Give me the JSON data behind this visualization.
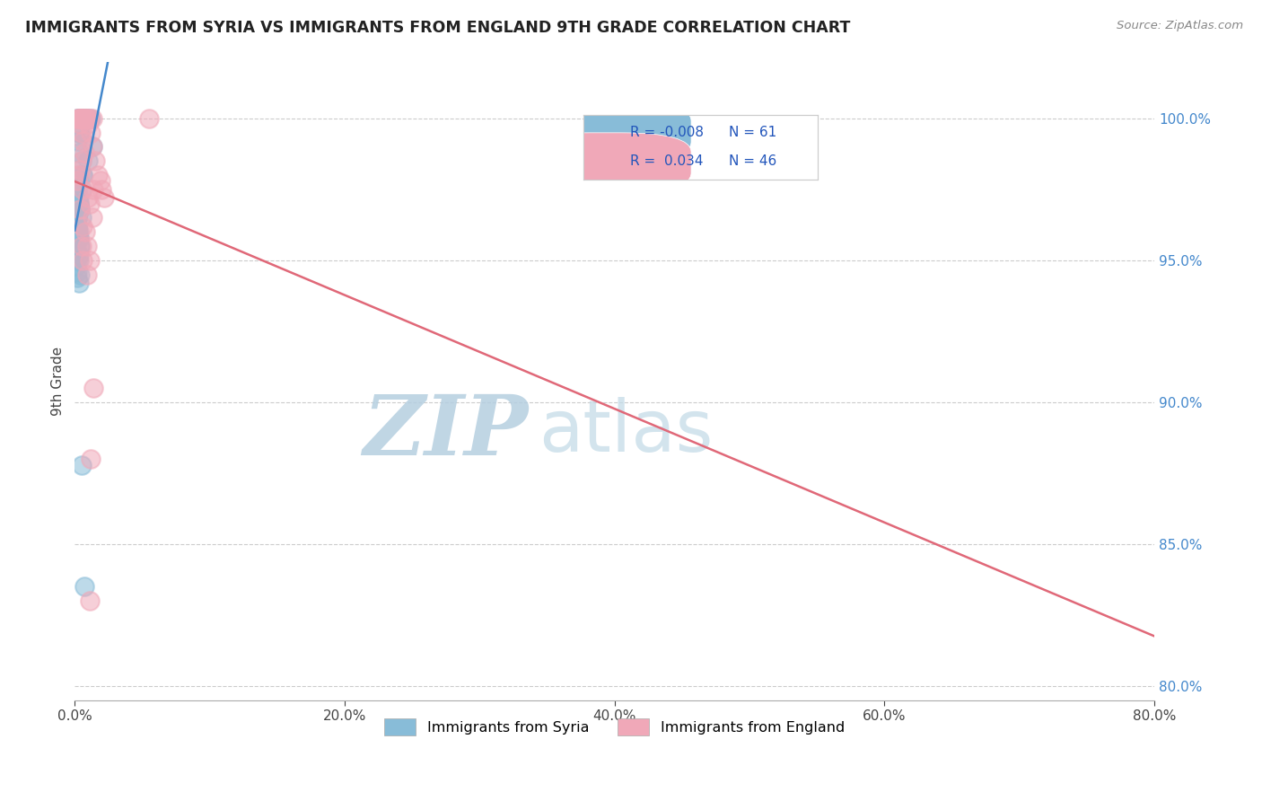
{
  "title": "IMMIGRANTS FROM SYRIA VS IMMIGRANTS FROM ENGLAND 9TH GRADE CORRELATION CHART",
  "source": "Source: ZipAtlas.com",
  "ylabel": "9th Grade",
  "y_ticks": [
    80.0,
    85.0,
    90.0,
    95.0,
    100.0
  ],
  "xlim": [
    0.0,
    80.0
  ],
  "ylim": [
    79.5,
    102.0
  ],
  "syria_R": -0.008,
  "syria_N": 61,
  "england_R": 0.034,
  "england_N": 46,
  "syria_color": "#88bcd8",
  "england_color": "#f0a8b8",
  "syria_line_color": "#4488cc",
  "england_line_color": "#e06878",
  "watermark_zip": "ZIP",
  "watermark_atlas": "atlas",
  "watermark_color_zip": "#b8d4ea",
  "watermark_color_atlas": "#c8dde8",
  "legend_syria_label": "Immigrants from Syria",
  "legend_england_label": "Immigrants from England",
  "syria_x": [
    0.3,
    0.5,
    0.8,
    0.4,
    0.2,
    0.3,
    0.5,
    0.7,
    0.4,
    0.6,
    0.8,
    1.0,
    1.2,
    0.4,
    0.3,
    0.2,
    0.3,
    0.5,
    0.6,
    0.2,
    0.3,
    0.3,
    0.4,
    0.5,
    0.2,
    0.3,
    0.3,
    0.4,
    0.2,
    0.2,
    0.1,
    0.2,
    0.2,
    0.3,
    0.3,
    0.4,
    0.2,
    0.2,
    0.2,
    0.2,
    0.3,
    0.4,
    0.5,
    0.7,
    0.3,
    0.2,
    0.2,
    0.2,
    0.3,
    0.4,
    0.2,
    0.2,
    0.2,
    0.3,
    1.3,
    1.0,
    0.6,
    0.5,
    0.3,
    0.2,
    0.2
  ],
  "syria_y": [
    100.0,
    100.0,
    100.0,
    100.0,
    100.0,
    100.0,
    100.0,
    100.0,
    100.0,
    100.0,
    100.0,
    100.0,
    100.0,
    99.5,
    99.5,
    99.2,
    98.8,
    98.5,
    98.0,
    97.5,
    97.2,
    97.0,
    96.8,
    96.5,
    96.2,
    96.0,
    95.8,
    95.5,
    95.3,
    95.0,
    94.8,
    94.6,
    94.4,
    94.2,
    95.2,
    95.5,
    95.8,
    96.0,
    96.2,
    96.5,
    95.0,
    94.5,
    87.8,
    83.5,
    98.0,
    97.8,
    97.5,
    97.2,
    97.0,
    96.8,
    96.5,
    96.2,
    96.0,
    95.8,
    99.0,
    98.5,
    98.0,
    97.5,
    97.0,
    96.5,
    96.0
  ],
  "england_x": [
    0.3,
    0.6,
    0.9,
    0.5,
    0.8,
    0.5,
    1.1,
    1.3,
    0.4,
    0.2,
    0.7,
    0.9,
    1.0,
    1.2,
    1.3,
    1.5,
    1.7,
    1.9,
    2.0,
    2.2,
    1.4,
    1.1,
    0.5,
    0.4,
    0.3,
    0.2,
    0.6,
    0.8,
    0.9,
    0.6,
    0.4,
    1.1,
    0.9,
    0.7,
    0.6,
    0.5,
    0.4,
    0.3,
    5.5,
    1.4,
    1.2,
    1.0,
    1.3,
    1.1,
    0.6,
    0.5
  ],
  "england_y": [
    100.0,
    100.0,
    100.0,
    100.0,
    100.0,
    100.0,
    100.0,
    100.0,
    100.0,
    100.0,
    100.0,
    100.0,
    99.8,
    99.5,
    99.0,
    98.5,
    98.0,
    97.8,
    97.5,
    97.2,
    97.5,
    97.0,
    98.5,
    98.2,
    98.0,
    97.8,
    97.5,
    96.0,
    95.5,
    96.2,
    96.8,
    95.0,
    94.5,
    98.8,
    99.2,
    99.5,
    99.8,
    100.0,
    100.0,
    90.5,
    88.0,
    97.2,
    96.5,
    83.0,
    95.0,
    95.5
  ],
  "england_x_outlier": 5.5,
  "syria_x_outlier1": 1.3,
  "syria_y_outlier1": 87.5,
  "syria_x_outlier2": 0.5,
  "syria_y_outlier2": 84.0,
  "england_x_outlier2": 1.4,
  "england_y_outlier2": 83.0
}
